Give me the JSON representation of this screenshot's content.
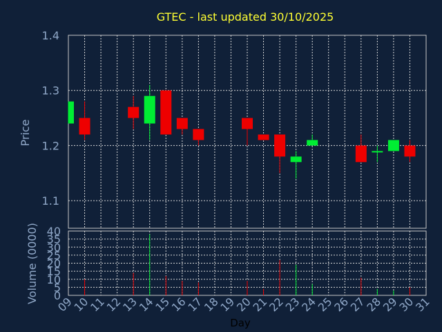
{
  "chart_data": {
    "type": "candlestick",
    "title": "GTEC - last updated 30/10/2025",
    "price_axis": {
      "label": "Price",
      "ylim": [
        1.05,
        1.4
      ],
      "ticks": [
        1.1,
        1.2,
        1.3,
        1.4
      ],
      "tick_labels": [
        "1.1",
        "1.2",
        "1.3",
        "1.4"
      ]
    },
    "volume_axis": {
      "label": "Volume (0000)",
      "ylim": [
        0,
        40
      ],
      "ticks": [
        0,
        5,
        10,
        15,
        20,
        25,
        30,
        35,
        40
      ],
      "tick_labels": [
        "0",
        "5",
        "10",
        "15",
        "20",
        "25",
        "30",
        "35",
        "40"
      ]
    },
    "x_axis": {
      "label": "Day",
      "range": [
        9,
        31
      ],
      "ticks": [
        9,
        10,
        11,
        12,
        13,
        14,
        15,
        16,
        17,
        18,
        19,
        20,
        21,
        22,
        23,
        24,
        25,
        26,
        27,
        28,
        29,
        30,
        31
      ],
      "tick_labels": [
        "09",
        "10",
        "11",
        "12",
        "13",
        "14",
        "15",
        "16",
        "17",
        "18",
        "19",
        "20",
        "21",
        "22",
        "23",
        "24",
        "25",
        "26",
        "27",
        "28",
        "29",
        "30",
        "31"
      ]
    },
    "grid": true,
    "colors": {
      "up": "#00ee33",
      "down": "#ee0000",
      "title": "#ffff33",
      "axis_text": "#90a8c8",
      "grid": "#d8d8d8",
      "background": "#102038"
    },
    "candles": [
      {
        "day": 9,
        "open": 1.24,
        "high": 1.28,
        "low": 1.24,
        "close": 1.28,
        "volume": 0
      },
      {
        "day": 10,
        "open": 1.25,
        "high": 1.28,
        "low": 1.21,
        "close": 1.22,
        "volume": 10
      },
      {
        "day": 13,
        "open": 1.27,
        "high": 1.29,
        "low": 1.23,
        "close": 1.25,
        "volume": 14
      },
      {
        "day": 14,
        "open": 1.24,
        "high": 1.31,
        "low": 1.21,
        "close": 1.29,
        "volume": 38
      },
      {
        "day": 15,
        "open": 1.3,
        "high": 1.3,
        "low": 1.22,
        "close": 1.22,
        "volume": 12
      },
      {
        "day": 16,
        "open": 1.25,
        "high": 1.25,
        "low": 1.22,
        "close": 1.23,
        "volume": 9
      },
      {
        "day": 17,
        "open": 1.23,
        "high": 1.23,
        "low": 1.2,
        "close": 1.21,
        "volume": 8
      },
      {
        "day": 20,
        "open": 1.25,
        "high": 1.25,
        "low": 1.2,
        "close": 1.23,
        "volume": 9
      },
      {
        "day": 21,
        "open": 1.22,
        "high": 1.22,
        "low": 1.21,
        "close": 1.21,
        "volume": 4
      },
      {
        "day": 22,
        "open": 1.22,
        "high": 1.22,
        "low": 1.15,
        "close": 1.18,
        "volume": 22
      },
      {
        "day": 23,
        "open": 1.17,
        "high": 1.19,
        "low": 1.14,
        "close": 1.18,
        "volume": 19
      },
      {
        "day": 24,
        "open": 1.2,
        "high": 1.22,
        "low": 1.2,
        "close": 1.21,
        "volume": 7
      },
      {
        "day": 27,
        "open": 1.2,
        "high": 1.22,
        "low": 1.17,
        "close": 1.17,
        "volume": 11
      },
      {
        "day": 28,
        "open": 1.19,
        "high": 1.2,
        "low": 1.17,
        "close": 1.19,
        "volume": 4
      },
      {
        "day": 29,
        "open": 1.19,
        "high": 1.21,
        "low": 1.19,
        "close": 1.21,
        "volume": 3
      },
      {
        "day": 30,
        "open": 1.2,
        "high": 1.21,
        "low": 1.17,
        "close": 1.18,
        "volume": 5
      }
    ]
  }
}
